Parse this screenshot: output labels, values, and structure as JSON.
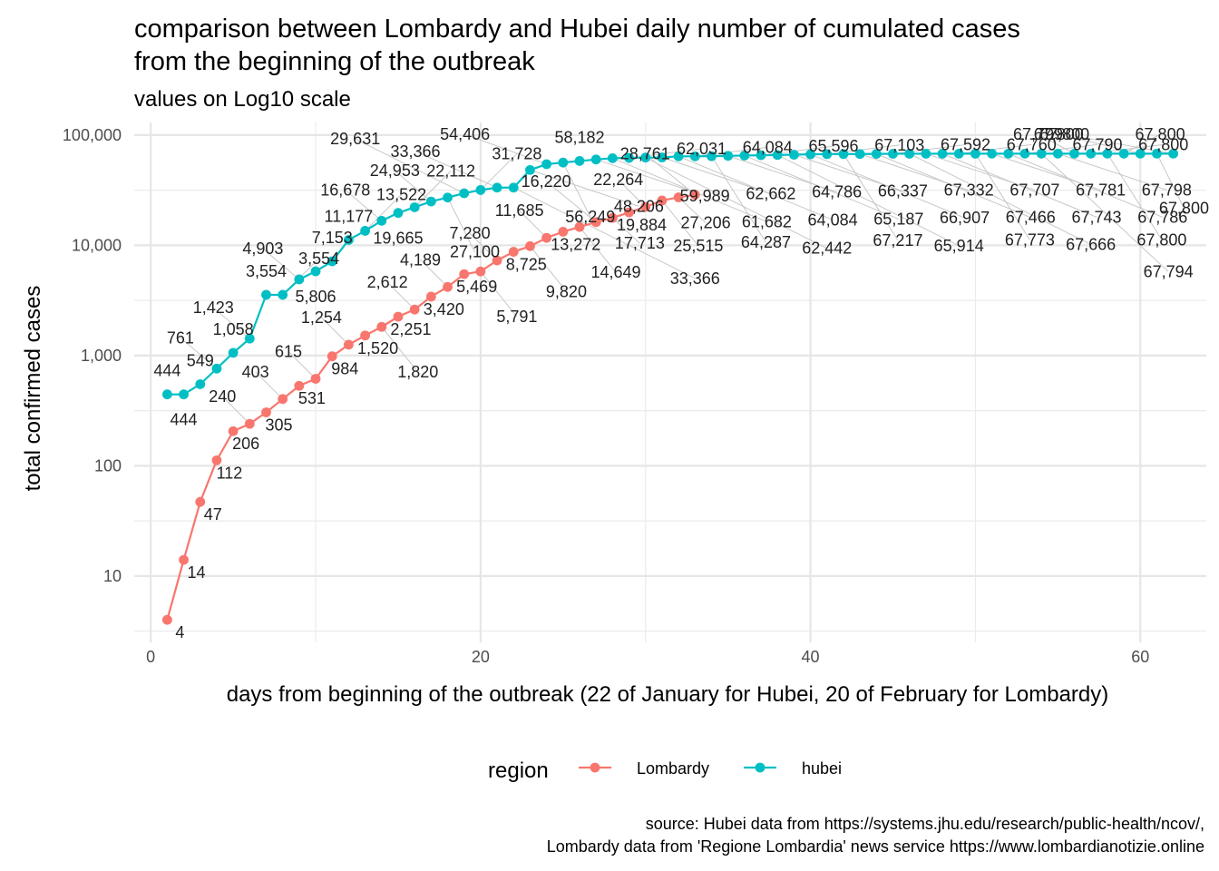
{
  "chart_data": {
    "type": "line",
    "title": "comparison between Lombardy and Hubei daily number of cumulated cases\nfrom the beginning of the outbreak",
    "subtitle": "values on Log10 scale",
    "xlabel": "days from beginning of the outbreak (22 of January for Hubei, 20 of February for Lombardy)",
    "ylabel": "total confirmed cases",
    "caption": "source: Hubei data from https://systems.jhu.edu/research/public-health/ncov/,\nLombardy data from 'Regione Lombardia' news service https://www.lombardianotizie.online",
    "y_scale": "log10",
    "xlim": [
      -1,
      64
    ],
    "ylim": [
      2.5,
      130000
    ],
    "x_ticks": [
      0,
      20,
      40,
      60
    ],
    "y_ticks": [
      10,
      100,
      1000,
      10000,
      100000
    ],
    "y_tick_labels": [
      "10",
      "100",
      "1,000",
      "10,000",
      "100,000"
    ],
    "grid": true,
    "legend": {
      "title": "region",
      "position": "bottom"
    },
    "series": [
      {
        "name": "Lombardy",
        "color": "#F8766D",
        "x": [
          1,
          2,
          3,
          4,
          5,
          6,
          7,
          8,
          9,
          10,
          11,
          12,
          13,
          14,
          15,
          16,
          17,
          18,
          19,
          20,
          21,
          22,
          23,
          24,
          25,
          26,
          27,
          28,
          29,
          30,
          31,
          32,
          33
        ],
        "values": [
          4,
          14,
          47,
          112,
          206,
          240,
          305,
          403,
          531,
          615,
          984,
          1254,
          1520,
          1820,
          2251,
          2612,
          3420,
          4189,
          5469,
          5791,
          7280,
          8725,
          9820,
          11685,
          13272,
          14649,
          16220,
          17713,
          19884,
          22264,
          25515,
          27206,
          28761
        ]
      },
      {
        "name": "hubei",
        "color": "#00BFC4",
        "x": [
          1,
          2,
          3,
          4,
          5,
          6,
          7,
          8,
          9,
          10,
          11,
          12,
          13,
          14,
          15,
          16,
          17,
          18,
          19,
          20,
          21,
          22,
          23,
          24,
          25,
          26,
          27,
          28,
          29,
          30,
          31,
          32,
          33,
          34,
          35,
          36,
          37,
          38,
          39,
          40,
          41,
          42,
          43,
          44,
          45,
          46,
          47,
          48,
          49,
          50,
          51,
          52,
          53,
          54,
          55,
          56,
          57,
          58,
          59,
          60,
          61,
          62
        ],
        "values": [
          444,
          444,
          549,
          761,
          1058,
          1423,
          3554,
          3554,
          4903,
          5806,
          7153,
          11177,
          13522,
          16678,
          19665,
          22112,
          24953,
          27100,
          29631,
          31728,
          33366,
          33366,
          48206,
          54406,
          56249,
          58182,
          59989,
          61682,
          62031,
          62442,
          62662,
          64084,
          64084,
          64287,
          64786,
          65187,
          65596,
          65914,
          66337,
          66907,
          67103,
          67217,
          67332,
          67466,
          67592,
          67666,
          67707,
          67743,
          67760,
          67773,
          67781,
          67786,
          67790,
          67794,
          67798,
          67799,
          67800,
          67800,
          67800,
          67800,
          67800,
          67800
        ]
      }
    ]
  }
}
